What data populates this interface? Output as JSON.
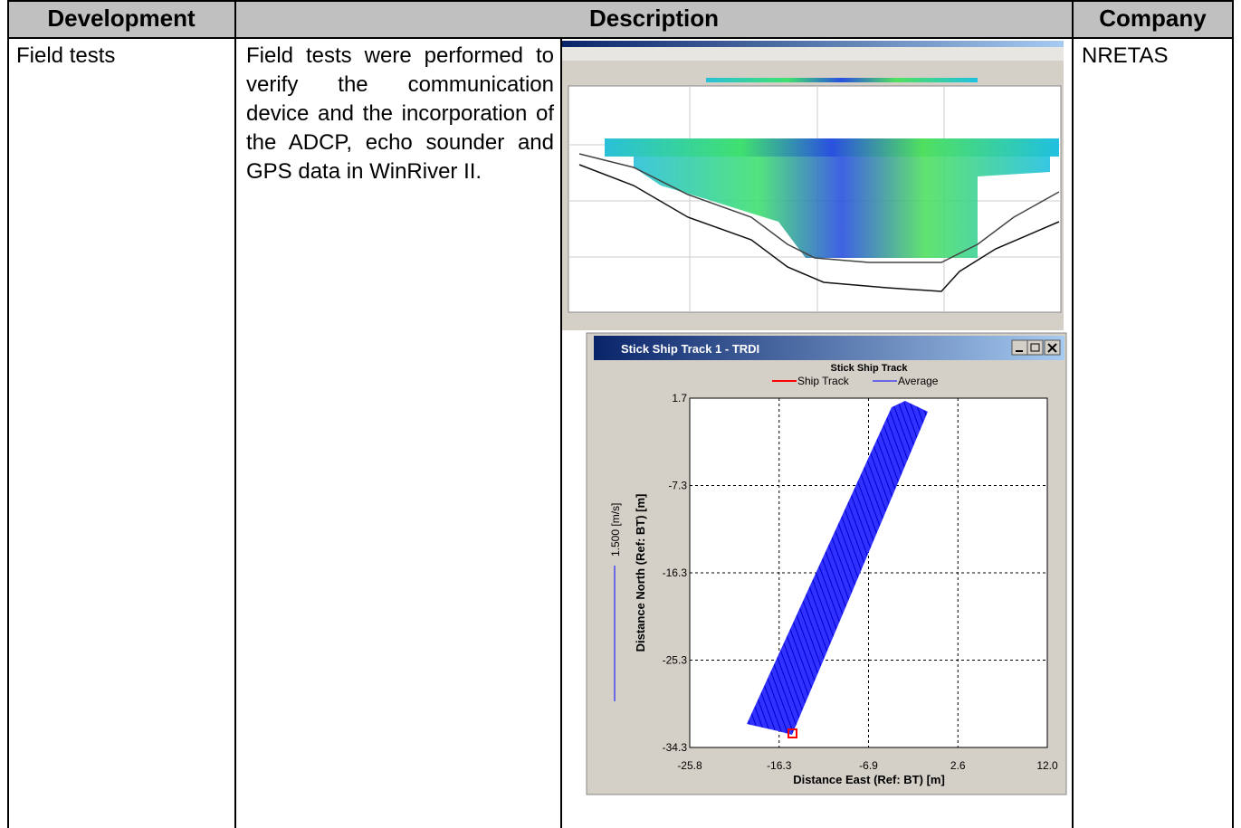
{
  "table": {
    "header": [
      "Development",
      "Description",
      "Company"
    ],
    "rows": [
      [
        "Field tests",
        "Field tests were performed to verify the communication device and the incorporation of the ADCP, echo sounder and GPS data in WinRiver II.",
        "NRETAS"
      ]
    ]
  },
  "figure": {
    "window_title": "Stick Ship Track 1 - TRDI",
    "plot_title": "Stick Ship Track",
    "legend": [
      "Ship Track",
      "Average"
    ],
    "yticks": [
      "1.7",
      "-7.3",
      "-16.3",
      "-25.3",
      "-34.3"
    ],
    "xticks": [
      "-25.8",
      "-16.3",
      "-6.9",
      "2.6",
      "12.0"
    ],
    "ylabel": "Distance North (Ref: BT) [m]",
    "xlabel": "Distance East (Ref: BT) [m]",
    "scale_label": "1.500 [m/s]"
  }
}
